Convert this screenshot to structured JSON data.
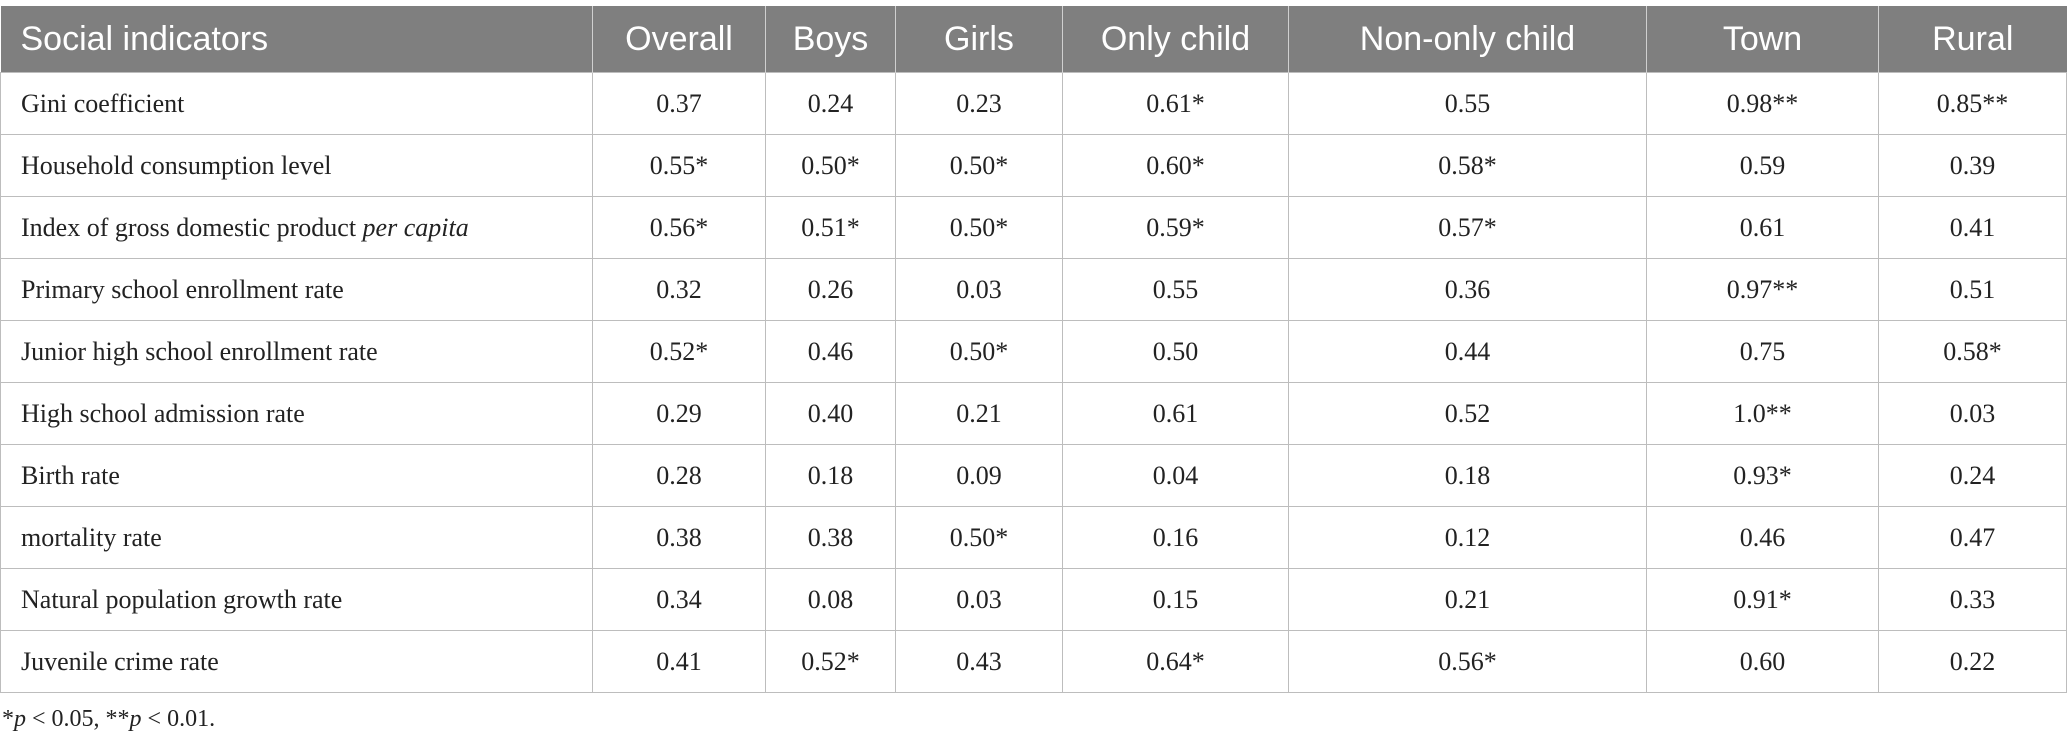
{
  "table": {
    "header": [
      "Social indicators",
      "Overall",
      "Boys",
      "Girls",
      "Only child",
      "Non-only child",
      "Town",
      "Rural"
    ],
    "rows": [
      [
        "Gini coefficient",
        "0.37",
        "0.24",
        "0.23",
        "0.61*",
        "0.55",
        "0.98**",
        "0.85**"
      ],
      [
        "Household consumption level",
        "0.55*",
        "0.50*",
        "0.50*",
        "0.60*",
        "0.58*",
        "0.59",
        "0.39"
      ],
      [
        {
          "text": "Index of gross domestic product ",
          "emphasis": "per capita"
        },
        "0.56*",
        "0.51*",
        "0.50*",
        "0.59*",
        "0.57*",
        "0.61",
        "0.41"
      ],
      [
        "Primary school enrollment rate",
        "0.32",
        "0.26",
        "0.03",
        "0.55",
        "0.36",
        "0.97**",
        "0.51"
      ],
      [
        "Junior high school enrollment rate",
        "0.52*",
        "0.46",
        "0.50*",
        "0.50",
        "0.44",
        "0.75",
        "0.58*"
      ],
      [
        "High school admission rate",
        "0.29",
        "0.40",
        "0.21",
        "0.61",
        "0.52",
        "1.0**",
        "0.03"
      ],
      [
        "Birth rate",
        "0.28",
        "0.18",
        "0.09",
        "0.04",
        "0.18",
        "0.93*",
        "0.24"
      ],
      [
        "mortality rate",
        "0.38",
        "0.38",
        "0.50*",
        "0.16",
        "0.12",
        "0.46",
        "0.47"
      ],
      [
        "Natural population growth rate",
        "0.34",
        "0.08",
        "0.03",
        "0.15",
        "0.21",
        "0.91*",
        "0.33"
      ],
      [
        "Juvenile crime rate",
        "0.41",
        "0.52*",
        "0.43",
        "0.64*",
        "0.56*",
        "0.60",
        "0.22"
      ]
    ]
  },
  "footnote": {
    "parts": [
      "*",
      "p",
      " < 0.05, **",
      "p",
      " < 0.01."
    ]
  }
}
